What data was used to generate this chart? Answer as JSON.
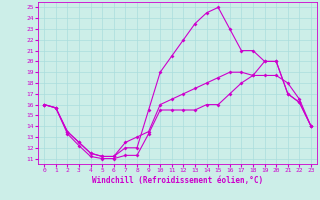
{
  "xlabel": "Windchill (Refroidissement éolien,°C)",
  "xlim": [
    -0.5,
    23.5
  ],
  "ylim": [
    10.5,
    25.5
  ],
  "yticks": [
    11,
    12,
    13,
    14,
    15,
    16,
    17,
    18,
    19,
    20,
    21,
    22,
    23,
    24,
    25
  ],
  "xticks": [
    0,
    1,
    2,
    3,
    4,
    5,
    6,
    7,
    8,
    9,
    10,
    11,
    12,
    13,
    14,
    15,
    16,
    17,
    18,
    19,
    20,
    21,
    22,
    23
  ],
  "bg_color": "#cceee8",
  "line_color": "#cc00cc",
  "grid_color": "#aadddd",
  "line1_x": [
    0,
    1,
    2,
    3,
    4,
    5,
    6,
    7,
    8,
    9,
    10,
    11,
    12,
    13,
    14,
    15,
    16,
    17,
    18,
    19,
    20,
    21,
    22,
    23
  ],
  "line1_y": [
    16.0,
    15.7,
    13.3,
    12.2,
    11.2,
    11.0,
    11.0,
    11.3,
    11.3,
    13.3,
    15.5,
    15.5,
    15.5,
    15.5,
    16.0,
    16.0,
    17.0,
    18.0,
    18.7,
    20.0,
    20.0,
    17.0,
    16.2,
    14.0
  ],
  "line2_x": [
    0,
    1,
    2,
    3,
    4,
    5,
    6,
    7,
    8,
    9,
    10,
    11,
    12,
    13,
    14,
    15,
    16,
    17,
    18,
    19,
    20,
    21,
    22,
    23
  ],
  "line2_y": [
    16.0,
    15.7,
    13.5,
    12.5,
    11.5,
    11.2,
    11.2,
    12.0,
    12.0,
    15.5,
    19.0,
    20.5,
    22.0,
    23.5,
    24.5,
    25.0,
    23.0,
    21.0,
    21.0,
    20.0,
    20.0,
    17.0,
    16.2,
    14.0
  ],
  "line3_x": [
    0,
    1,
    2,
    3,
    4,
    5,
    6,
    7,
    8,
    9,
    10,
    11,
    12,
    13,
    14,
    15,
    16,
    17,
    18,
    19,
    20,
    21,
    22,
    23
  ],
  "line3_y": [
    16.0,
    15.7,
    13.5,
    12.5,
    11.5,
    11.2,
    11.2,
    12.5,
    13.0,
    13.5,
    16.0,
    16.5,
    17.0,
    17.5,
    18.0,
    18.5,
    19.0,
    19.0,
    18.7,
    18.7,
    18.7,
    18.0,
    16.5,
    14.0
  ],
  "xlabel_fontsize": 5.5,
  "tick_fontsize": 4.5
}
